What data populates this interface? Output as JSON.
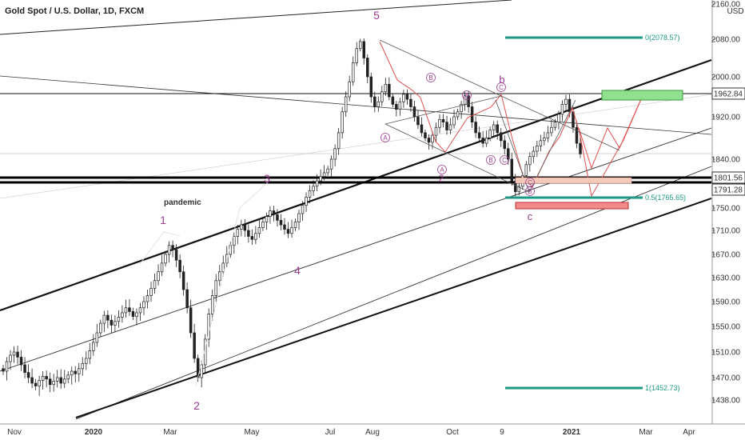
{
  "chart_data": {
    "type": "candlestick",
    "title": "Gold Spot / U.S. Dollar, 1D, FXCM",
    "currency": "USD",
    "ylim": [
      1420,
      2170
    ],
    "y_ticks": [
      1438.0,
      1470.0,
      1510.0,
      1550.0,
      1590.0,
      1630.0,
      1670.0,
      1710.0,
      1750.0,
      1790.0,
      1840.0,
      1880.0,
      1920.0,
      1960.0,
      2000.0,
      2080.0,
      2160.0
    ],
    "y_tick_labels": [
      "1438.00",
      "1470.00",
      "1510.00",
      "1550.00",
      "1590.00",
      "1630.00",
      "1670.00",
      "1710.00",
      "1750.00",
      "",
      "1840.00",
      "",
      "1920.00",
      "",
      "2000.00",
      "2080.00",
      "2160.00"
    ],
    "x_tick_labels": [
      "Nov",
      "2020",
      "Mar",
      "May",
      "Jul",
      "Aug",
      "Oct",
      "9",
      "2021",
      "Mar",
      "Apr"
    ],
    "price_tags": [
      {
        "value": 1962.84,
        "label": "1962.84"
      },
      {
        "value": 1801.56,
        "label": "1801.56"
      },
      {
        "value": 1791.28,
        "label": "1791.28"
      }
    ],
    "fib_levels": [
      {
        "label": "0(2078.57)",
        "value": 2078.57
      },
      {
        "label": "0.5(1765.65)",
        "value": 1765.65
      },
      {
        "label": "1(1452.73)",
        "value": 1452.73
      }
    ],
    "wave_labels": [
      "1",
      "2",
      "3",
      "4",
      "5",
      "b",
      "c",
      "2"
    ],
    "circled_labels": [
      "A",
      "B",
      "C",
      "A",
      "B",
      "C",
      "A",
      "B",
      "C"
    ],
    "annotation": "pandemic",
    "ohlc_closes": [
      1480,
      1495,
      1505,
      1510,
      1502,
      1490,
      1478,
      1470,
      1462,
      1458,
      1466,
      1472,
      1468,
      1460,
      1465,
      1470,
      1462,
      1468,
      1474,
      1480,
      1476,
      1484,
      1492,
      1500,
      1512,
      1525,
      1540,
      1555,
      1568,
      1560,
      1552,
      1558,
      1565,
      1572,
      1580,
      1574,
      1566,
      1572,
      1580,
      1590,
      1600,
      1612,
      1625,
      1640,
      1655,
      1670,
      1685,
      1678,
      1660,
      1640,
      1610,
      1580,
      1540,
      1500,
      1470,
      1490,
      1530,
      1570,
      1600,
      1625,
      1640,
      1655,
      1670,
      1685,
      1700,
      1712,
      1720,
      1710,
      1700,
      1695,
      1705,
      1715,
      1725,
      1735,
      1745,
      1738,
      1728,
      1720,
      1712,
      1705,
      1715,
      1725,
      1740,
      1755,
      1770,
      1782,
      1790,
      1800,
      1808,
      1815,
      1822,
      1840,
      1860,
      1890,
      1930,
      1960,
      1990,
      2030,
      2060,
      2075,
      2040,
      2000,
      1960,
      1940,
      1950,
      1970,
      1985,
      1960,
      1945,
      1935,
      1950,
      1965,
      1955,
      1940,
      1920,
      1905,
      1890,
      1880,
      1872,
      1885,
      1900,
      1915,
      1910,
      1895,
      1905,
      1920,
      1930,
      1945,
      1962,
      1940,
      1910,
      1890,
      1880,
      1870,
      1880,
      1895,
      1905,
      1890,
      1875,
      1860,
      1840,
      1800,
      1780,
      1790,
      1810,
      1830,
      1845,
      1855,
      1865,
      1875,
      1880,
      1890,
      1900,
      1910,
      1925,
      1945,
      1955,
      1930,
      1900,
      1870,
      1850
    ]
  }
}
